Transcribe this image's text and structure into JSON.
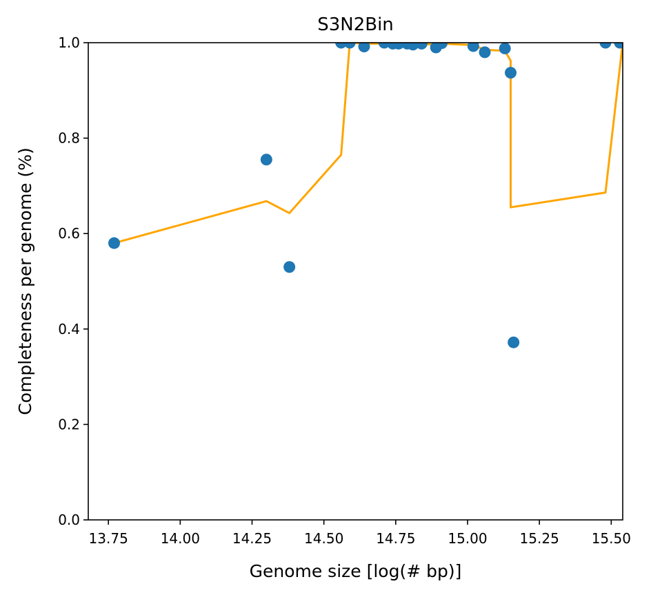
{
  "chart_data": {
    "type": "scatter",
    "title": "S3N2Bin",
    "xlabel": "Genome size [log(# bp)]",
    "ylabel": "Completeness per genome (%)",
    "xlim": [
      13.68,
      15.54
    ],
    "ylim": [
      0.0,
      1.0
    ],
    "xticks": [
      "13.75",
      "14.00",
      "14.25",
      "14.50",
      "14.75",
      "15.00",
      "15.25",
      "15.50"
    ],
    "yticks": [
      "0.0",
      "0.2",
      "0.4",
      "0.6",
      "0.8",
      "1.0"
    ],
    "grid": false,
    "colors": {
      "points": "#1f77b4",
      "line": "#ffa500"
    },
    "series": [
      {
        "type": "scatter",
        "x": [
          13.77,
          14.3,
          14.38,
          14.56,
          14.59,
          14.64,
          14.71,
          14.74,
          14.76,
          14.79,
          14.81,
          14.84,
          14.89,
          14.91,
          15.02,
          15.06,
          15.13,
          15.15,
          15.16,
          15.48,
          15.53
        ],
        "y": [
          0.58,
          0.755,
          0.53,
          1.0,
          1.0,
          0.992,
          1.0,
          0.998,
          0.998,
          0.998,
          0.996,
          0.998,
          0.99,
          0.999,
          0.993,
          0.98,
          0.988,
          0.937,
          0.372,
          1.0,
          1.0
        ]
      },
      {
        "type": "line",
        "x": [
          13.77,
          14.3,
          14.38,
          14.56,
          14.59,
          14.64,
          14.71,
          14.74,
          14.76,
          14.79,
          14.81,
          14.84,
          14.89,
          14.91,
          15.02,
          15.06,
          15.13,
          15.15,
          15.15,
          15.48,
          15.54
        ],
        "y": [
          0.58,
          0.668,
          0.643,
          0.765,
          1.0,
          0.998,
          0.998,
          0.998,
          0.998,
          0.997,
          0.997,
          0.997,
          0.996,
          0.998,
          0.995,
          0.985,
          0.983,
          0.962,
          0.655,
          0.686,
          1.0
        ]
      }
    ]
  }
}
